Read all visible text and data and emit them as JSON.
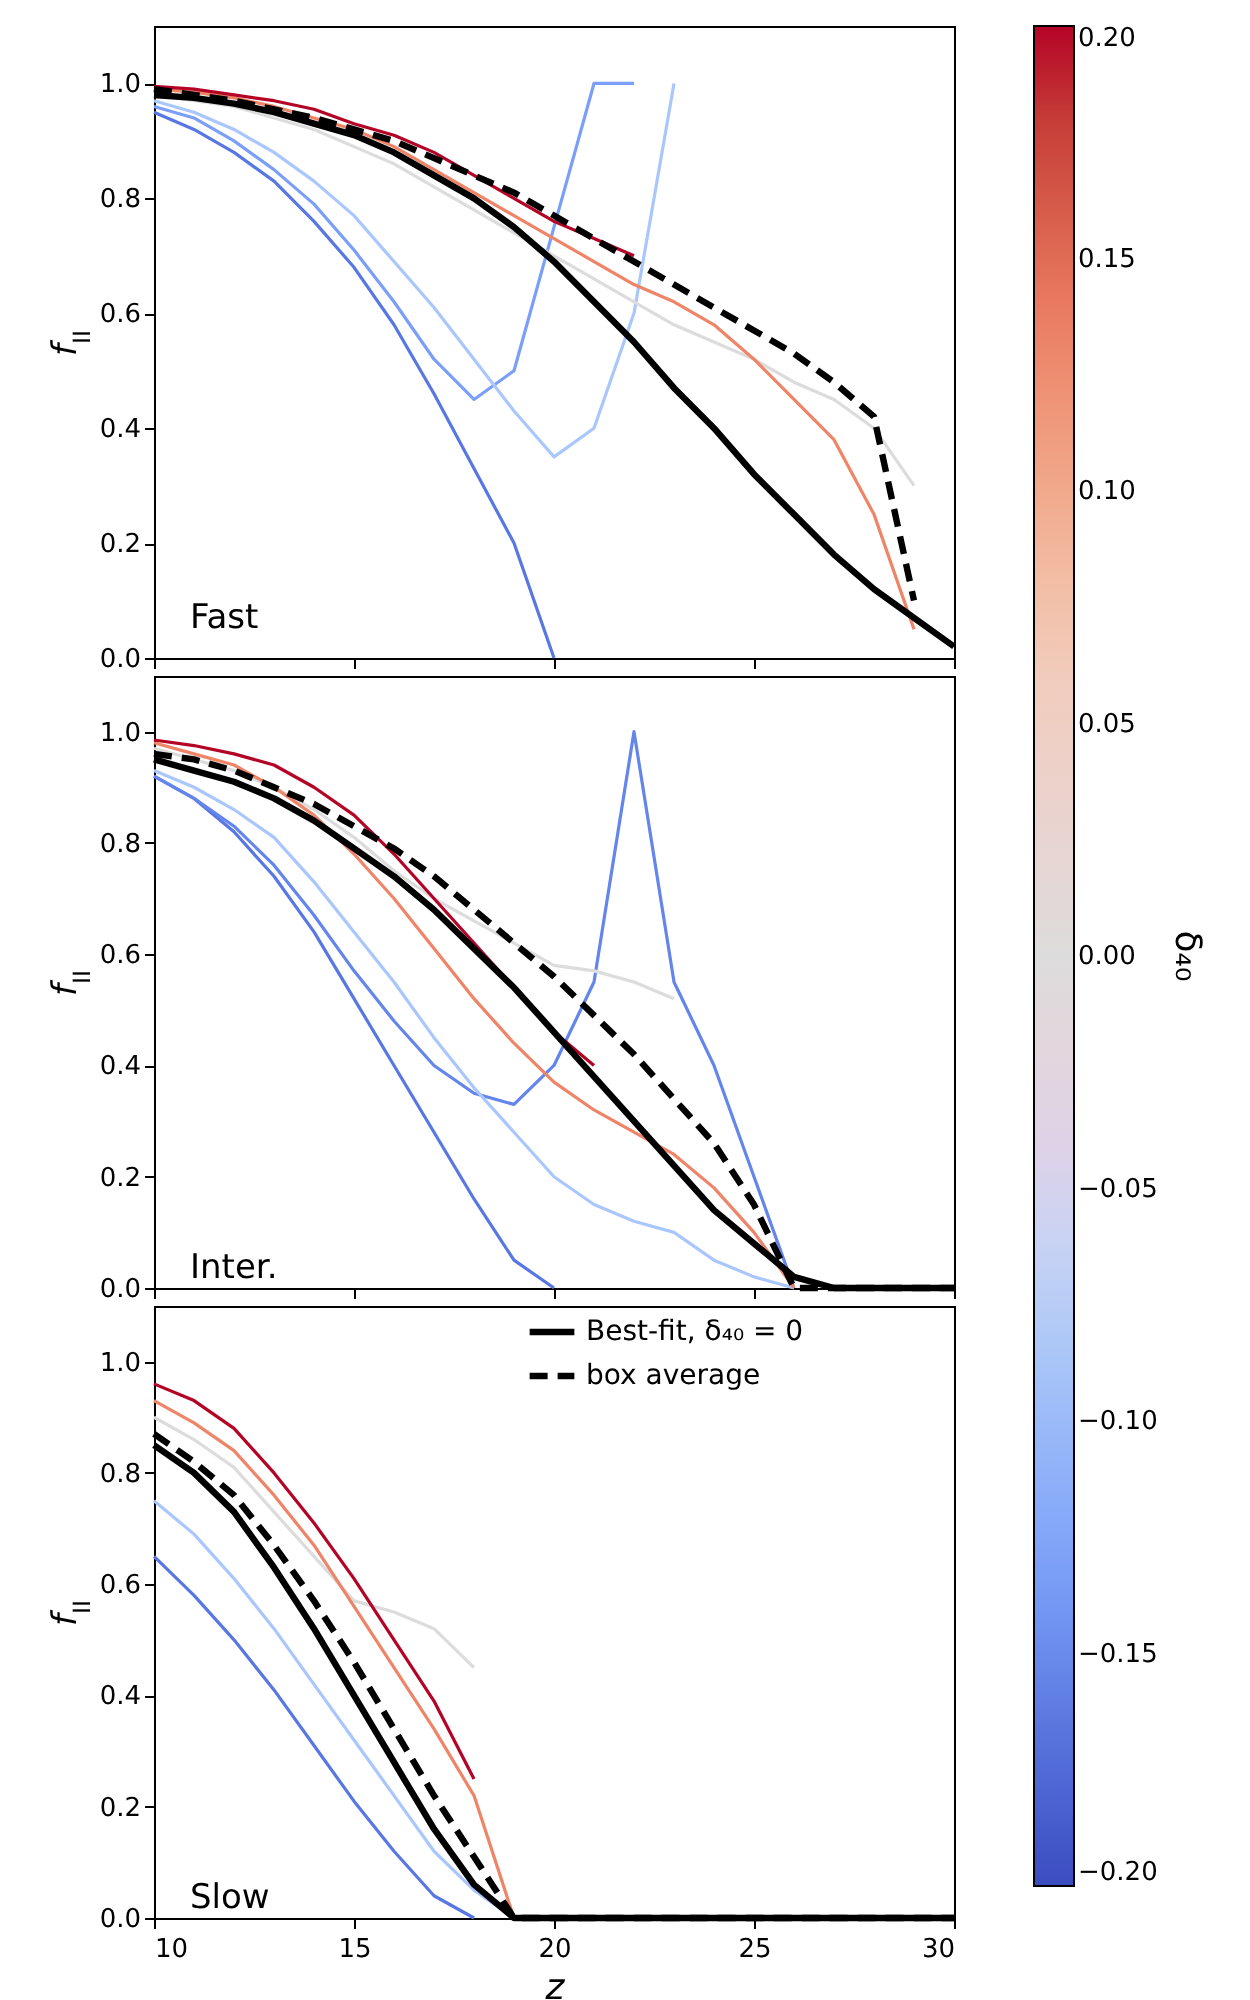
{
  "chart_data": [
    {
      "type": "line",
      "ylabel": "f$_{II}$",
      "annotations": [
        "Fast"
      ],
      "grid": false,
      "tick_labels": "y",
      "xlim": [
        10,
        30
      ],
      "xticks": [
        10,
        15,
        20,
        25,
        30
      ],
      "ylim": [
        0,
        1.1
      ],
      "yticks": [
        {
          "value": 0,
          "label": "0.0"
        },
        {
          "value": 0.2,
          "label": "0.2"
        },
        {
          "value": 0.4,
          "label": "0.4"
        },
        {
          "value": 0.6,
          "label": "0.6"
        },
        {
          "value": 0.8,
          "label": "0.8"
        },
        {
          "value": 1,
          "label": "1.0"
        }
      ],
      "clabel": "δ₄₀",
      "clim": [
        -0.2,
        0.2
      ],
      "cticks": [
        {
          "value": -0.2,
          "label": "−0.20"
        },
        {
          "value": -0.15,
          "label": "−0.15"
        },
        {
          "value": -0.1,
          "label": "−0.10"
        },
        {
          "value": -0.05,
          "label": "−0.05"
        },
        {
          "value": 0,
          "label": "0.00"
        },
        {
          "value": 0.05,
          "label": "0.05"
        },
        {
          "value": 0.1,
          "label": "0.10"
        },
        {
          "value": 0.15,
          "label": "0.15"
        },
        {
          "value": 0.2,
          "label": "0.20"
        }
      ],
      "x": [
        10,
        11,
        12,
        13,
        14,
        15,
        16,
        17,
        18,
        19,
        20,
        21,
        22,
        23,
        24,
        25,
        26,
        27,
        28,
        29,
        30
      ],
      "series": [
        {
          "color": "#5977e3",
          "values": [
            0.95,
            0.92,
            0.88,
            0.83,
            0.76,
            0.68,
            0.58,
            0.46,
            0.33,
            0.2,
            0.0,
            null,
            null,
            null,
            null,
            null,
            null,
            null,
            null,
            null,
            null
          ]
        },
        {
          "color": "#7b9ff9",
          "values": [
            0.96,
            0.94,
            0.9,
            0.85,
            0.79,
            0.71,
            0.62,
            0.52,
            0.45,
            0.5,
            0.75,
            1.0,
            1.0,
            null,
            null,
            null,
            null,
            null,
            null,
            null,
            null
          ]
        },
        {
          "color": "#aac7fd",
          "values": [
            0.97,
            0.95,
            0.92,
            0.88,
            0.83,
            0.77,
            0.69,
            0.61,
            0.52,
            0.43,
            0.35,
            0.4,
            0.6,
            1.0,
            null,
            null,
            null,
            null,
            null,
            null,
            null
          ]
        },
        {
          "color": "#dddcdc",
          "values": [
            0.98,
            0.97,
            0.96,
            0.94,
            0.92,
            0.89,
            0.86,
            0.82,
            0.78,
            0.74,
            0.7,
            0.66,
            0.62,
            0.58,
            0.55,
            0.52,
            0.48,
            0.45,
            0.4,
            0.3,
            null
          ]
        },
        {
          "color": "#ee8468",
          "values": [
            0.99,
            0.985,
            0.975,
            0.96,
            0.94,
            0.92,
            0.89,
            0.85,
            0.81,
            0.77,
            0.73,
            0.69,
            0.65,
            0.62,
            0.58,
            0.52,
            0.45,
            0.38,
            0.25,
            0.05,
            null
          ]
        },
        {
          "color": "#b40426",
          "values": [
            0.995,
            0.99,
            0.98,
            0.97,
            0.955,
            0.93,
            0.91,
            0.88,
            0.84,
            0.8,
            0.76,
            0.73,
            0.7,
            null,
            null,
            null,
            null,
            null,
            null,
            null,
            null
          ]
        },
        {
          "color": "#000000",
          "values": [
            0.98,
            0.975,
            0.965,
            0.95,
            0.93,
            0.91,
            0.88,
            0.84,
            0.8,
            0.75,
            0.69,
            0.62,
            0.55,
            0.47,
            0.4,
            0.32,
            0.25,
            0.18,
            0.12,
            0.07,
            0.02
          ]
        },
        {
          "color": "#000000",
          "line_style": "dashed",
          "values": [
            0.99,
            0.98,
            0.97,
            0.955,
            0.94,
            0.92,
            0.9,
            0.87,
            0.84,
            0.81,
            0.77,
            0.73,
            0.69,
            0.65,
            0.61,
            0.57,
            0.53,
            0.48,
            0.42,
            0.1,
            null
          ]
        }
      ]
    },
    {
      "type": "line",
      "ylabel": "f$_{II}$",
      "annotations": [
        "Inter."
      ],
      "grid": false,
      "tick_labels": "y",
      "xlim": [
        10,
        30
      ],
      "xticks": [
        10,
        15,
        20,
        25,
        30
      ],
      "ylim": [
        0,
        1.1
      ],
      "yticks": [
        {
          "value": 0,
          "label": "0.0"
        },
        {
          "value": 0.2,
          "label": "0.2"
        },
        {
          "value": 0.4,
          "label": "0.4"
        },
        {
          "value": 0.6,
          "label": "0.6"
        },
        {
          "value": 0.8,
          "label": "0.8"
        },
        {
          "value": 1,
          "label": "1.0"
        }
      ],
      "x": [
        10,
        11,
        12,
        13,
        14,
        15,
        16,
        17,
        18,
        19,
        20,
        21,
        22,
        23,
        24,
        25,
        26,
        27,
        28,
        29,
        30
      ],
      "series": [
        {
          "color": "#5977e3",
          "values": [
            0.92,
            0.88,
            0.82,
            0.74,
            0.64,
            0.52,
            0.4,
            0.28,
            0.16,
            0.05,
            0.0,
            null,
            null,
            null,
            null,
            null,
            null,
            null,
            null,
            null,
            null
          ]
        },
        {
          "color": "#6485ec",
          "values": [
            0.92,
            0.88,
            0.83,
            0.76,
            0.67,
            0.57,
            0.48,
            0.4,
            0.35,
            0.33,
            0.4,
            0.55,
            1.0,
            0.55,
            0.4,
            0.2,
            0.0,
            null,
            null,
            null,
            null
          ]
        },
        {
          "color": "#aac7fd",
          "values": [
            0.93,
            0.9,
            0.86,
            0.81,
            0.73,
            0.64,
            0.55,
            0.45,
            0.36,
            0.28,
            0.2,
            0.15,
            0.12,
            0.1,
            0.05,
            0.02,
            0.0,
            null,
            null,
            null,
            null
          ]
        },
        {
          "color": "#dddcdc",
          "values": [
            0.97,
            0.95,
            0.93,
            0.9,
            0.86,
            0.81,
            0.75,
            0.7,
            0.66,
            0.62,
            0.58,
            0.57,
            0.55,
            0.52,
            null,
            null,
            null,
            null,
            null,
            null,
            null
          ]
        },
        {
          "color": "#ee8468",
          "values": [
            0.98,
            0.96,
            0.94,
            0.9,
            0.85,
            0.78,
            0.7,
            0.61,
            0.52,
            0.44,
            0.37,
            0.32,
            0.28,
            0.24,
            0.18,
            0.1,
            0.0,
            null,
            null,
            null,
            null
          ]
        },
        {
          "color": "#b40426",
          "values": [
            0.985,
            0.975,
            0.96,
            0.94,
            0.9,
            0.85,
            0.78,
            0.7,
            0.62,
            0.54,
            0.46,
            0.4,
            null,
            null,
            null,
            null,
            null,
            null,
            null,
            null,
            null
          ]
        },
        {
          "color": "#000000",
          "values": [
            0.95,
            0.93,
            0.91,
            0.88,
            0.84,
            0.79,
            0.74,
            0.68,
            0.61,
            0.54,
            0.46,
            0.38,
            0.3,
            0.22,
            0.14,
            0.08,
            0.02,
            0.0,
            0.0,
            0.0,
            0.0
          ]
        },
        {
          "color": "#000000",
          "line_style": "dashed",
          "values": [
            0.96,
            0.95,
            0.93,
            0.9,
            0.87,
            0.83,
            0.79,
            0.74,
            0.68,
            0.62,
            0.56,
            0.49,
            0.42,
            0.34,
            0.26,
            0.15,
            0.0,
            0.0,
            0.0,
            0.0,
            0.0
          ]
        }
      ]
    },
    {
      "type": "line",
      "xlabel": "z",
      "ylabel": "f$_{II}$",
      "annotations": [
        "Slow"
      ],
      "grid": false,
      "legend": "top right",
      "xlim": [
        10,
        30
      ],
      "xticks": [
        10,
        15,
        20,
        25,
        30
      ],
      "ylim": [
        0,
        1.1
      ],
      "yticks": [
        {
          "value": 0,
          "label": "0.0"
        },
        {
          "value": 0.2,
          "label": "0.2"
        },
        {
          "value": 0.4,
          "label": "0.4"
        },
        {
          "value": 0.6,
          "label": "0.6"
        },
        {
          "value": 0.8,
          "label": "0.8"
        },
        {
          "value": 1,
          "label": "1.0"
        }
      ],
      "x": [
        10,
        11,
        12,
        13,
        14,
        15,
        16,
        17,
        18,
        19,
        20,
        21,
        22,
        23,
        24,
        25,
        26,
        27,
        28,
        29,
        30
      ],
      "series": [
        {
          "color": "#5977e3",
          "values": [
            0.65,
            0.58,
            0.5,
            0.41,
            0.31,
            0.21,
            0.12,
            0.04,
            0.0,
            null,
            null,
            null,
            null,
            null,
            null,
            null,
            null,
            null,
            null,
            null,
            null
          ]
        },
        {
          "color": "#aac7fd",
          "values": [
            0.75,
            0.69,
            0.61,
            0.52,
            0.42,
            0.32,
            0.22,
            0.12,
            0.05,
            0.0,
            null,
            null,
            null,
            null,
            null,
            null,
            null,
            null,
            null,
            null,
            null
          ]
        },
        {
          "color": "#dddcdc",
          "values": [
            0.9,
            0.86,
            0.81,
            0.73,
            0.65,
            0.57,
            0.55,
            0.52,
            0.45,
            null,
            null,
            null,
            null,
            null,
            null,
            null,
            null,
            null,
            null,
            null,
            null
          ]
        },
        {
          "color": "#ee8468",
          "values": [
            0.93,
            0.89,
            0.84,
            0.76,
            0.67,
            0.56,
            0.45,
            0.34,
            0.22,
            0.0,
            null,
            null,
            null,
            null,
            null,
            null,
            null,
            null,
            null,
            null,
            null
          ]
        },
        {
          "color": "#b40426",
          "values": [
            0.96,
            0.93,
            0.88,
            0.8,
            0.71,
            0.61,
            0.5,
            0.39,
            0.25,
            null,
            null,
            null,
            null,
            null,
            null,
            null,
            null,
            null,
            null,
            null,
            null
          ]
        },
        {
          "name": "Best-fit, δ₄₀ = 0",
          "color": "#000000",
          "values": [
            0.85,
            0.8,
            0.73,
            0.63,
            0.52,
            0.4,
            0.28,
            0.16,
            0.06,
            0.0,
            0.0,
            0.0,
            0.0,
            0.0,
            0.0,
            0.0,
            0.0,
            0.0,
            0.0,
            0.0,
            0.0
          ]
        },
        {
          "name": "box average",
          "color": "#000000",
          "line_style": "dashed",
          "values": [
            0.87,
            0.82,
            0.76,
            0.67,
            0.57,
            0.46,
            0.34,
            0.22,
            0.11,
            0.0,
            0.0,
            0.0,
            0.0,
            0.0,
            0.0,
            0.0,
            0.0,
            0.0,
            0.0,
            0.0,
            0.0
          ]
        }
      ]
    }
  ]
}
